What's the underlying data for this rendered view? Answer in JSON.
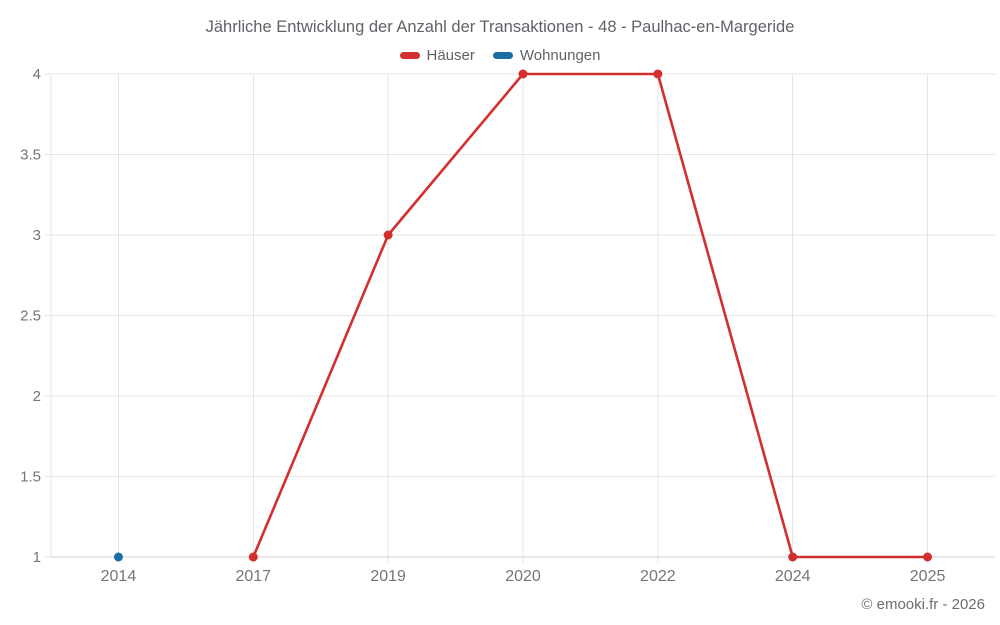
{
  "title": "Jährliche Entwicklung der Anzahl der Transaktionen - 48 - Paulhac-en-Margeride",
  "watermark": "© emooki.fr - 2026",
  "colors": {
    "haeuser_red": "#d32f2f",
    "wohnungen_blue": "#186da3",
    "grid": "#e6e6e6",
    "axis": "#d2d2d2",
    "title_text": "#5f6368",
    "tick_text": "#757575",
    "watermark_text": "#6e6e6e"
  },
  "chart_data": {
    "type": "line",
    "title": "Jährliche Entwicklung der Anzahl der Transaktionen - 48 - Paulhac-en-Margeride",
    "xlabel": "",
    "ylabel": "",
    "categories": [
      "2014",
      "2017",
      "2019",
      "2020",
      "2022",
      "2024",
      "2025"
    ],
    "series": [
      {
        "name": "Häuser",
        "color": "#d32f2f",
        "values": [
          null,
          1,
          3,
          4,
          4,
          1,
          1
        ]
      },
      {
        "name": "Wohnungen",
        "color": "#186da3",
        "values": [
          1,
          null,
          null,
          null,
          null,
          null,
          null
        ]
      }
    ],
    "ylim": [
      1,
      4
    ],
    "yticks": [
      "1",
      "1.5",
      "2",
      "2.5",
      "3",
      "3.5",
      "4"
    ],
    "grid": true,
    "legend_position": "top"
  }
}
